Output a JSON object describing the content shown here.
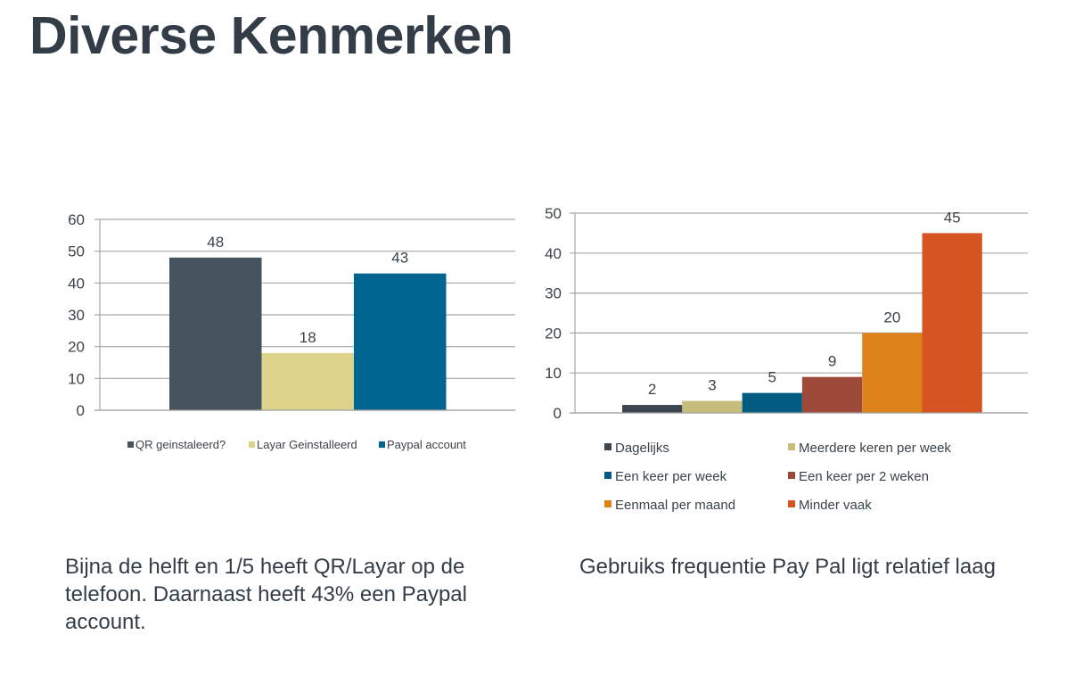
{
  "page": {
    "title": "Diverse Kenmerken"
  },
  "chart_data": [
    {
      "type": "bar",
      "title": "",
      "xlabel": "",
      "ylabel": "",
      "ylim": [
        0,
        60
      ],
      "yticks": [
        0,
        10,
        20,
        30,
        40,
        50,
        60
      ],
      "ytick_labels": [
        "0",
        "10",
        "20",
        "30",
        "40",
        "50",
        "60"
      ],
      "grid": true,
      "legend_position": "bottom",
      "categories": [
        ""
      ],
      "series": [
        {
          "name": "QR geinstaleerd?",
          "values": [
            48
          ],
          "color": "#46525d",
          "label": "48"
        },
        {
          "name": "Layar Geinstalleerd",
          "values": [
            18
          ],
          "color": "#dcd28a",
          "label": "18"
        },
        {
          "name": "Paypal account",
          "values": [
            43
          ],
          "color": "#01638f",
          "label": "43"
        }
      ]
    },
    {
      "type": "bar",
      "title": "",
      "xlabel": "",
      "ylabel": "",
      "ylim": [
        0,
        50
      ],
      "yticks": [
        0,
        10,
        20,
        30,
        40,
        50
      ],
      "ytick_labels": [
        "0",
        "10",
        "20",
        "30",
        "40",
        "50"
      ],
      "grid": true,
      "legend_position": "bottom",
      "categories": [
        ""
      ],
      "series": [
        {
          "name": "Dagelijks",
          "values": [
            2
          ],
          "color": "#3c4650",
          "label": "2"
        },
        {
          "name": "Meerdere keren per week",
          "values": [
            3
          ],
          "color": "#c8bc7a",
          "label": "3"
        },
        {
          "name": "Een keer per week",
          "values": [
            5
          ],
          "color": "#025c82",
          "label": "5"
        },
        {
          "name": "Een keer per 2 weken",
          "values": [
            9
          ],
          "color": "#9e4a3b",
          "label": "9"
        },
        {
          "name": "Eenmaal per maand",
          "values": [
            20
          ],
          "color": "#dc8218",
          "label": "20"
        },
        {
          "name": "Minder vaak",
          "values": [
            45
          ],
          "color": "#d65422",
          "label": "45"
        }
      ]
    }
  ],
  "captions": {
    "left": "Bijna de helft en 1/5 heeft QR/Layar op de telefoon. Daarnaast heeft 43% een Paypal account.",
    "right": "Gebruiks frequentie Pay Pal ligt relatief laag"
  }
}
